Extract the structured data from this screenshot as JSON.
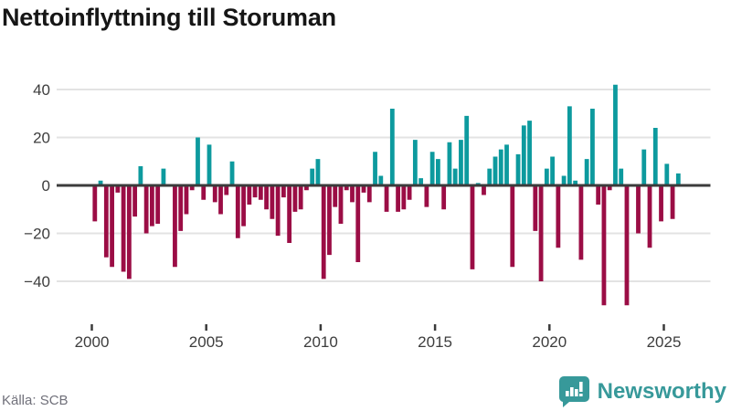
{
  "title": "Nettoinflyttning till Storuman",
  "source": "Källa: SCB",
  "brand": {
    "name": "Newsworthy",
    "icon": "bar-chart-speech-bubble-icon"
  },
  "colors": {
    "positive_bar": "#0d9a9e",
    "negative_bar": "#9b0d45",
    "zero_line": "#3b3b3b",
    "gridline": "#e3e3e3",
    "axis_text": "#3d3d3d",
    "tick_mark": "#3b3b3b",
    "source_text": "#70707a",
    "brand_teal": "#37999a",
    "title_text": "#161616"
  },
  "chart_data": {
    "type": "bar",
    "title": "Nettoinflyttning till Storuman",
    "xlabel": "",
    "ylabel": "",
    "frequency": "quarterly",
    "start_year": 2000,
    "start_quarter": 1,
    "values": [
      -15,
      2,
      -30,
      -34,
      -3,
      -36,
      -39,
      -13,
      8,
      -20,
      -17,
      -16,
      7,
      0,
      -34,
      -19,
      -12,
      -2,
      20,
      -6,
      17,
      -7,
      -12,
      -4,
      10,
      -22,
      -17,
      -8,
      -5,
      -6,
      -10,
      -14,
      -21,
      -5,
      -24,
      -11,
      -10,
      -2,
      7,
      11,
      -39,
      -29,
      -9,
      -16,
      -2,
      -7,
      -32,
      -3,
      -7,
      14,
      4,
      -11,
      32,
      -11,
      -10,
      -6,
      19,
      3,
      -9,
      14,
      11,
      -10,
      18,
      7,
      19,
      29,
      -35,
      1,
      -4,
      7,
      12,
      15,
      17,
      -34,
      13,
      25,
      27,
      -19,
      -40,
      7,
      12,
      -26,
      4,
      33,
      2,
      -31,
      11,
      32,
      -8,
      -50,
      -2,
      42,
      7,
      -50,
      0,
      -20,
      15,
      -26,
      24,
      -15,
      9,
      -14,
      5
    ],
    "y_ticks": [
      40,
      20,
      0,
      -20,
      -40
    ],
    "x_tick_labels": [
      "2000",
      "2005",
      "2010",
      "2015",
      "2020",
      "2025"
    ],
    "x_tick_years": [
      2000,
      2005,
      2010,
      2015,
      2020,
      2025
    ],
    "ylim": [
      -53,
      45
    ],
    "grid": "horizontal",
    "legend": "none",
    "positive_color": "#0d9a9e",
    "negative_color": "#9b0d45"
  }
}
